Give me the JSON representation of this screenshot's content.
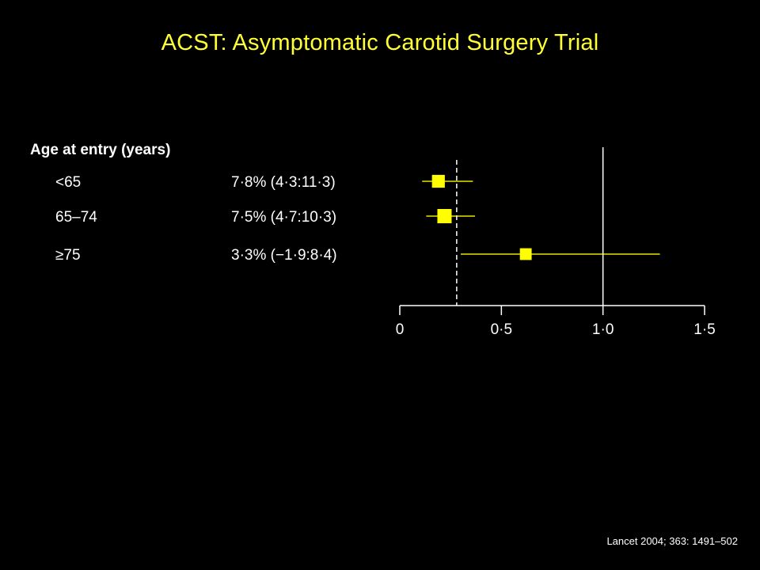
{
  "slide": {
    "title": "ACST: Asymptomatic Carotid Surgery Trial",
    "citation": "Lancet 2004; 363: 1491–502"
  },
  "chart_data": {
    "type": "forest",
    "group_label": "Age at entry (years)",
    "rows": [
      {
        "label": "<65",
        "estimate_text": "7·8% (4·3:11·3)",
        "point": 0.19,
        "lo": 0.11,
        "hi": 0.36,
        "marker_weight": 0.8
      },
      {
        "label": "65–74",
        "estimate_text": "7·5% (4·7:10·3)",
        "point": 0.22,
        "lo": 0.13,
        "hi": 0.37,
        "marker_weight": 1.0
      },
      {
        "label": "≥75",
        "estimate_text": "3·3% (−1·9:8·4)",
        "point": 0.62,
        "lo": 0.3,
        "hi": 1.28,
        "marker_weight": 0.65
      }
    ],
    "x_axis": {
      "min": 0,
      "max": 1.5,
      "ticks": [
        0,
        0.5,
        1.0,
        1.5
      ],
      "tick_labels": [
        "0",
        "0·5",
        "1·0",
        "1·5"
      ]
    },
    "reference_line": 1.0,
    "overall_line": 0.28,
    "colors": {
      "marker": "#ffff00",
      "ci": "#e6e600",
      "axis": "#ffffff",
      "title": "#ffff33"
    }
  }
}
